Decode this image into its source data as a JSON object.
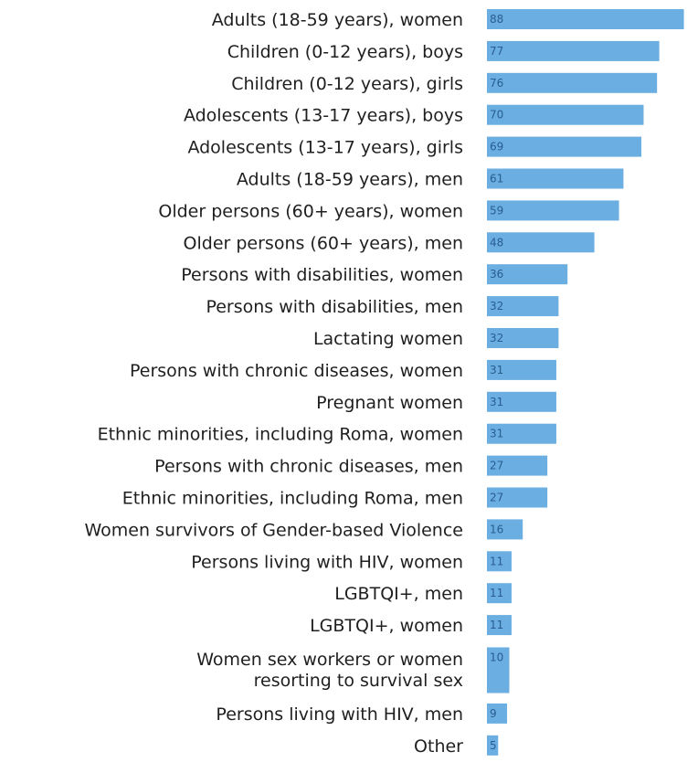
{
  "chart_data": {
    "type": "bar",
    "orientation": "horizontal",
    "bar_color": "#6aaee2",
    "label_color": "#1f1f1f",
    "value_label_color": "#2a5d8f",
    "categories": [
      "Adults (18-59 years), women",
      "Children (0-12 years), boys",
      "Children (0-12 years), girls",
      "Adolescents (13-17 years), boys",
      "Adolescents (13-17 years), girls",
      "Adults (18-59 years), men",
      "Older persons (60+ years), women",
      "Older persons (60+ years), men",
      "Persons with disabilities, women",
      "Persons with disabilities, men",
      "Lactating women",
      "Persons with chronic diseases, women",
      "Pregnant women",
      "Ethnic minorities, including Roma, women",
      "Persons with chronic diseases, men",
      "Ethnic minorities, including Roma, men",
      "Women survivors of Gender-based Violence",
      "Persons living with HIV, women",
      "LGBTQI+, men",
      "LGBTQI+, women",
      "Women sex workers or women\nresorting to survival sex",
      "Persons living with HIV, men",
      "Other"
    ],
    "values": [
      88,
      77,
      76,
      70,
      69,
      61,
      59,
      48,
      36,
      32,
      32,
      31,
      31,
      31,
      27,
      27,
      16,
      11,
      11,
      11,
      10,
      9,
      5
    ],
    "title": "",
    "xlabel": "",
    "ylabel": "",
    "grid": false,
    "legend": "none"
  }
}
